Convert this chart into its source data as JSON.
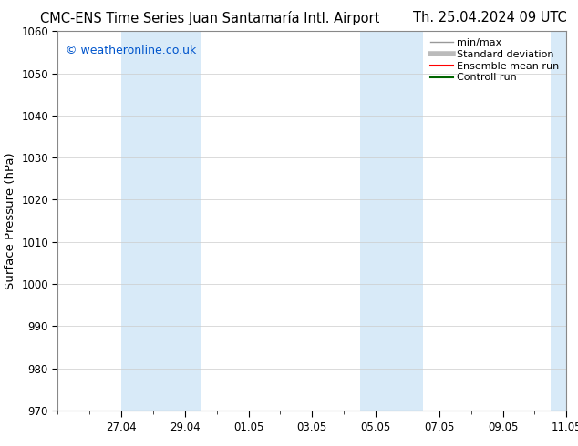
{
  "title_left": "CMC-ENS Time Series Juan Santamaría Intl. Airport",
  "title_right": "Th. 25.04.2024 09 UTC",
  "ylabel": "Surface Pressure (hPa)",
  "watermark": "© weatheronline.co.uk",
  "watermark_color": "#0055cc",
  "ylim": [
    970,
    1060
  ],
  "yticks": [
    970,
    980,
    990,
    1000,
    1010,
    1020,
    1030,
    1040,
    1050,
    1060
  ],
  "xlim": [
    0,
    16
  ],
  "xtick_labels": [
    "27.04",
    "29.04",
    "01.05",
    "03.05",
    "05.05",
    "07.05",
    "09.05",
    "11.05"
  ],
  "xtick_positions": [
    2,
    4,
    6,
    8,
    10,
    12,
    14,
    16
  ],
  "shaded_blocks": [
    {
      "start": 2.0,
      "end": 4.5,
      "color": "#d8eaf8"
    },
    {
      "start": 9.5,
      "end": 11.5,
      "color": "#d8eaf8"
    },
    {
      "start": 15.5,
      "end": 16.0,
      "color": "#d8eaf8"
    }
  ],
  "legend_items": [
    {
      "label": "min/max",
      "color": "#999999",
      "lw": 1.0
    },
    {
      "label": "Standard deviation",
      "color": "#bbbbbb",
      "lw": 4.0
    },
    {
      "label": "Ensemble mean run",
      "color": "#ff0000",
      "lw": 1.5
    },
    {
      "label": "Controll run",
      "color": "#006600",
      "lw": 1.5
    }
  ],
  "bg_color": "#ffffff",
  "plot_bg_color": "#ffffff",
  "grid_color": "#cccccc",
  "spine_color": "#888888",
  "tick_color": "#000000",
  "title_fontsize": 10.5,
  "ylabel_fontsize": 9.5,
  "tick_fontsize": 8.5,
  "watermark_fontsize": 9,
  "legend_fontsize": 8
}
